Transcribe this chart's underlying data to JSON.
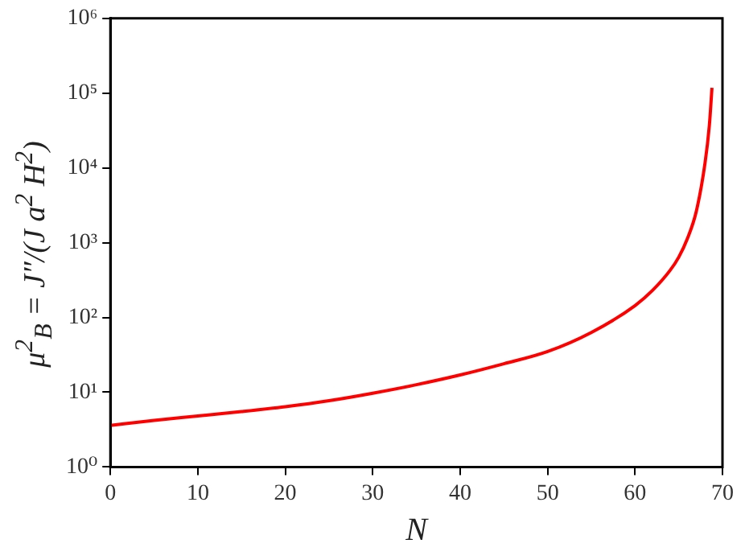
{
  "chart_data": {
    "type": "line",
    "xlabel": "N",
    "ylabel": "μ$^{2}$$_{B}$ = J″/(J a$^{2}$ H$^{2}$)",
    "log": "y",
    "grid": false,
    "legend": false,
    "marker": "none",
    "line_style": "solid",
    "x": [
      0,
      5,
      10,
      15,
      20,
      25,
      30,
      35,
      40,
      45,
      50,
      55,
      60,
      62,
      64,
      65,
      66,
      67,
      68,
      68.5,
      68.8
    ],
    "series": [
      {
        "color": "#ff0000",
        "values": [
          3.6,
          4.2,
          4.8,
          5.5,
          6.4,
          7.7,
          9.7,
          12.6,
          17,
          24,
          35,
          63,
          144,
          230,
          425,
          640,
          1140,
          2600,
          11500,
          37000,
          118000
        ]
      }
    ],
    "xlim": [
      0,
      70
    ],
    "xticks": [
      0,
      10,
      20,
      30,
      40,
      50,
      60,
      70
    ],
    "ylim": [
      1,
      1000000
    ],
    "yticks": [
      {
        "value": 1,
        "label": "10⁰"
      },
      {
        "value": 10,
        "label": "10¹"
      },
      {
        "value": 100,
        "label": "10²"
      },
      {
        "value": 1000,
        "label": "10³"
      },
      {
        "value": 10000,
        "label": "10⁴"
      },
      {
        "value": 100000,
        "label": "10⁵"
      },
      {
        "value": 1000000,
        "label": "10⁶"
      }
    ]
  }
}
